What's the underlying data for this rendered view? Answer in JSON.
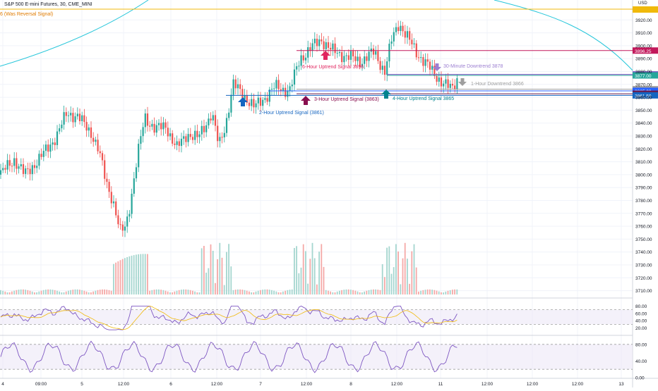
{
  "header": {
    "title": "S&P 500 E-mini Futures, 30, CME_MINI",
    "subtitle": "6 (Was Reversal Signal)"
  },
  "price_axis": {
    "currency": "USD",
    "ticks": [
      "3920.00",
      "3910.00",
      "3900.00",
      "3890.00",
      "3880.00",
      "3870.00",
      "3860.00",
      "3850.00",
      "3840.00",
      "3830.00",
      "3820.00",
      "3810.00",
      "3800.00",
      "3790.00",
      "3780.00",
      "3770.00",
      "3760.00",
      "3750.00",
      "3740.00",
      "3730.00",
      "3720.00",
      "3710.00"
    ],
    "tick_values": [
      3920,
      3910,
      3900,
      3890,
      3880,
      3870,
      3860,
      3850,
      3840,
      3830,
      3820,
      3810,
      3800,
      3790,
      3780,
      3770,
      3760,
      3750,
      3740,
      3730,
      3720,
      3710
    ],
    "price_tags": [
      {
        "text": "3896.25",
        "value": 3896.25,
        "color": "#c2185b"
      },
      {
        "text": "3877.75",
        "value": 3877.75,
        "color": "#7e57c2"
      },
      {
        "text": "3877.00",
        "value": 3877.0,
        "color": "#26a69a"
      },
      {
        "text": "3866.25",
        "value": 3866.25,
        "color": "#9e9e9e"
      },
      {
        "text": "3865.00",
        "value": 3865.0,
        "color": "#2962ff"
      },
      {
        "text": "3862.75",
        "value": 3862.75,
        "color": "#6a1b4d"
      },
      {
        "text": "3861.50",
        "value": 3861.5,
        "color": "#1565c0"
      }
    ],
    "top_tag_color": "#f0b90b"
  },
  "time_axis": {
    "labels": [
      "4",
      "09:00",
      "5",
      "12:00",
      "6",
      "12:00",
      "7",
      "12:00",
      "8",
      "12:00",
      "11",
      "12:00",
      "12:00",
      "12:00",
      "13"
    ]
  },
  "signals": [
    {
      "text": "6-Hour Uptrend Signal 3896",
      "color": "#e0245e",
      "direction": "up",
      "level": 3896
    },
    {
      "text": "30-Minute Downtrend 3878",
      "color": "#9c7fd1",
      "direction": "down",
      "level": 3878
    },
    {
      "text": "1-Hour Downtrend 3866",
      "color": "#9e9e9e",
      "direction": "down",
      "level": 3866
    },
    {
      "text": "3-Hour Uptrend Signal (3863)",
      "color": "#880e4f",
      "direction": "up",
      "level": 3863
    },
    {
      "text": "4-Hour Uptrend Signal 3865",
      "color": "#00838f",
      "direction": "up",
      "level": 3865
    },
    {
      "text": "2-Hour Uptrend Signal (3861)",
      "color": "#1565c0",
      "direction": "up",
      "level": 3861
    }
  ],
  "osc1": {
    "ticks": [
      "80.00",
      "60.00",
      "40.00",
      "20.00"
    ],
    "tick_values": [
      80,
      60,
      40,
      20
    ],
    "band": [
      30,
      70
    ]
  },
  "osc2": {
    "ticks": [
      "80.00",
      "40.00",
      "0.00"
    ],
    "tick_values": [
      80,
      40,
      0
    ],
    "band": [
      20,
      80
    ]
  },
  "colors": {
    "up": "#26a69a",
    "down": "#ef5350",
    "ma": "#26c6da",
    "rsi": "#7e57c2",
    "rsi_ma": "#f0b90b",
    "grid": "#f0f3fa",
    "axis_text": "#131722",
    "orange_line": "#f0b90b"
  }
}
